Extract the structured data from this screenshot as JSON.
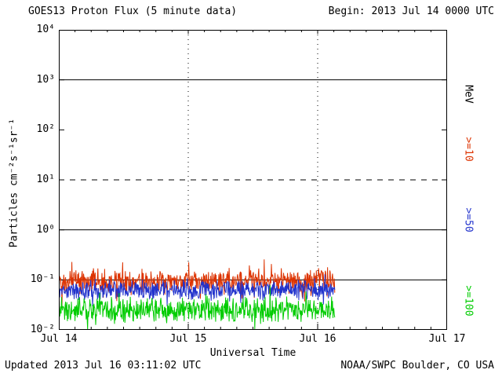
{
  "header": {
    "title": "GOES13 Proton Flux (5 minute data)",
    "begin": "Begin: 2013 Jul 14 0000 UTC"
  },
  "footer": {
    "updated": "Updated 2013 Jul 16 03:11:02 UTC",
    "source": "NOAA/SWPC Boulder, CO USA"
  },
  "right_labels": {
    "unit": "MeV",
    "items": [
      {
        "label": ">=10",
        "color": "#dd3300"
      },
      {
        "label": ">=50",
        "color": "#2233cc"
      },
      {
        "label": ">=100",
        "color": "#00cc00"
      }
    ]
  },
  "chart_data": {
    "type": "line",
    "title": "GOES13 Proton Flux (5 minute data)",
    "xlabel": "Universal Time",
    "ylabel": "Particles cm⁻²s⁻¹sr⁻¹",
    "x_ticks": [
      "Jul 14",
      "Jul 15",
      "Jul 16",
      "Jul 17"
    ],
    "y_ticks": [
      "10⁴",
      "10³",
      "10²",
      "10¹",
      "10⁰",
      "10⁻¹",
      "10⁻²"
    ],
    "y_log_range": [
      -2,
      4
    ],
    "x_range_days": [
      0,
      3
    ],
    "grid": {
      "hlines_solid_log10": [
        3,
        0,
        -1
      ],
      "hlines_dashed_log10": [
        1
      ],
      "vlines_dotted_day": [
        1,
        2
      ]
    },
    "sample_interval_min": 5,
    "data_start_day": 0,
    "data_end_day": 2.133,
    "seed": 20130714,
    "series": [
      {
        "name": ">=10 MeV",
        "color": "#dd3300",
        "mean_log10_flux": -1.02,
        "noise_log10": 0.18,
        "spike_log10": 0.3,
        "approx_flux_range": [
          0.05,
          0.35
        ]
      },
      {
        "name": ">=50 MeV",
        "color": "#2233cc",
        "mean_log10_flux": -1.2,
        "noise_log10": 0.14,
        "spike_log10": 0.2,
        "approx_flux_range": [
          0.03,
          0.12
        ]
      },
      {
        "name": ">=100 MeV",
        "color": "#00cc00",
        "mean_log10_flux": -1.6,
        "noise_log10": 0.19,
        "spike_log10": 0.25,
        "approx_flux_range": [
          0.01,
          0.06
        ]
      }
    ]
  }
}
